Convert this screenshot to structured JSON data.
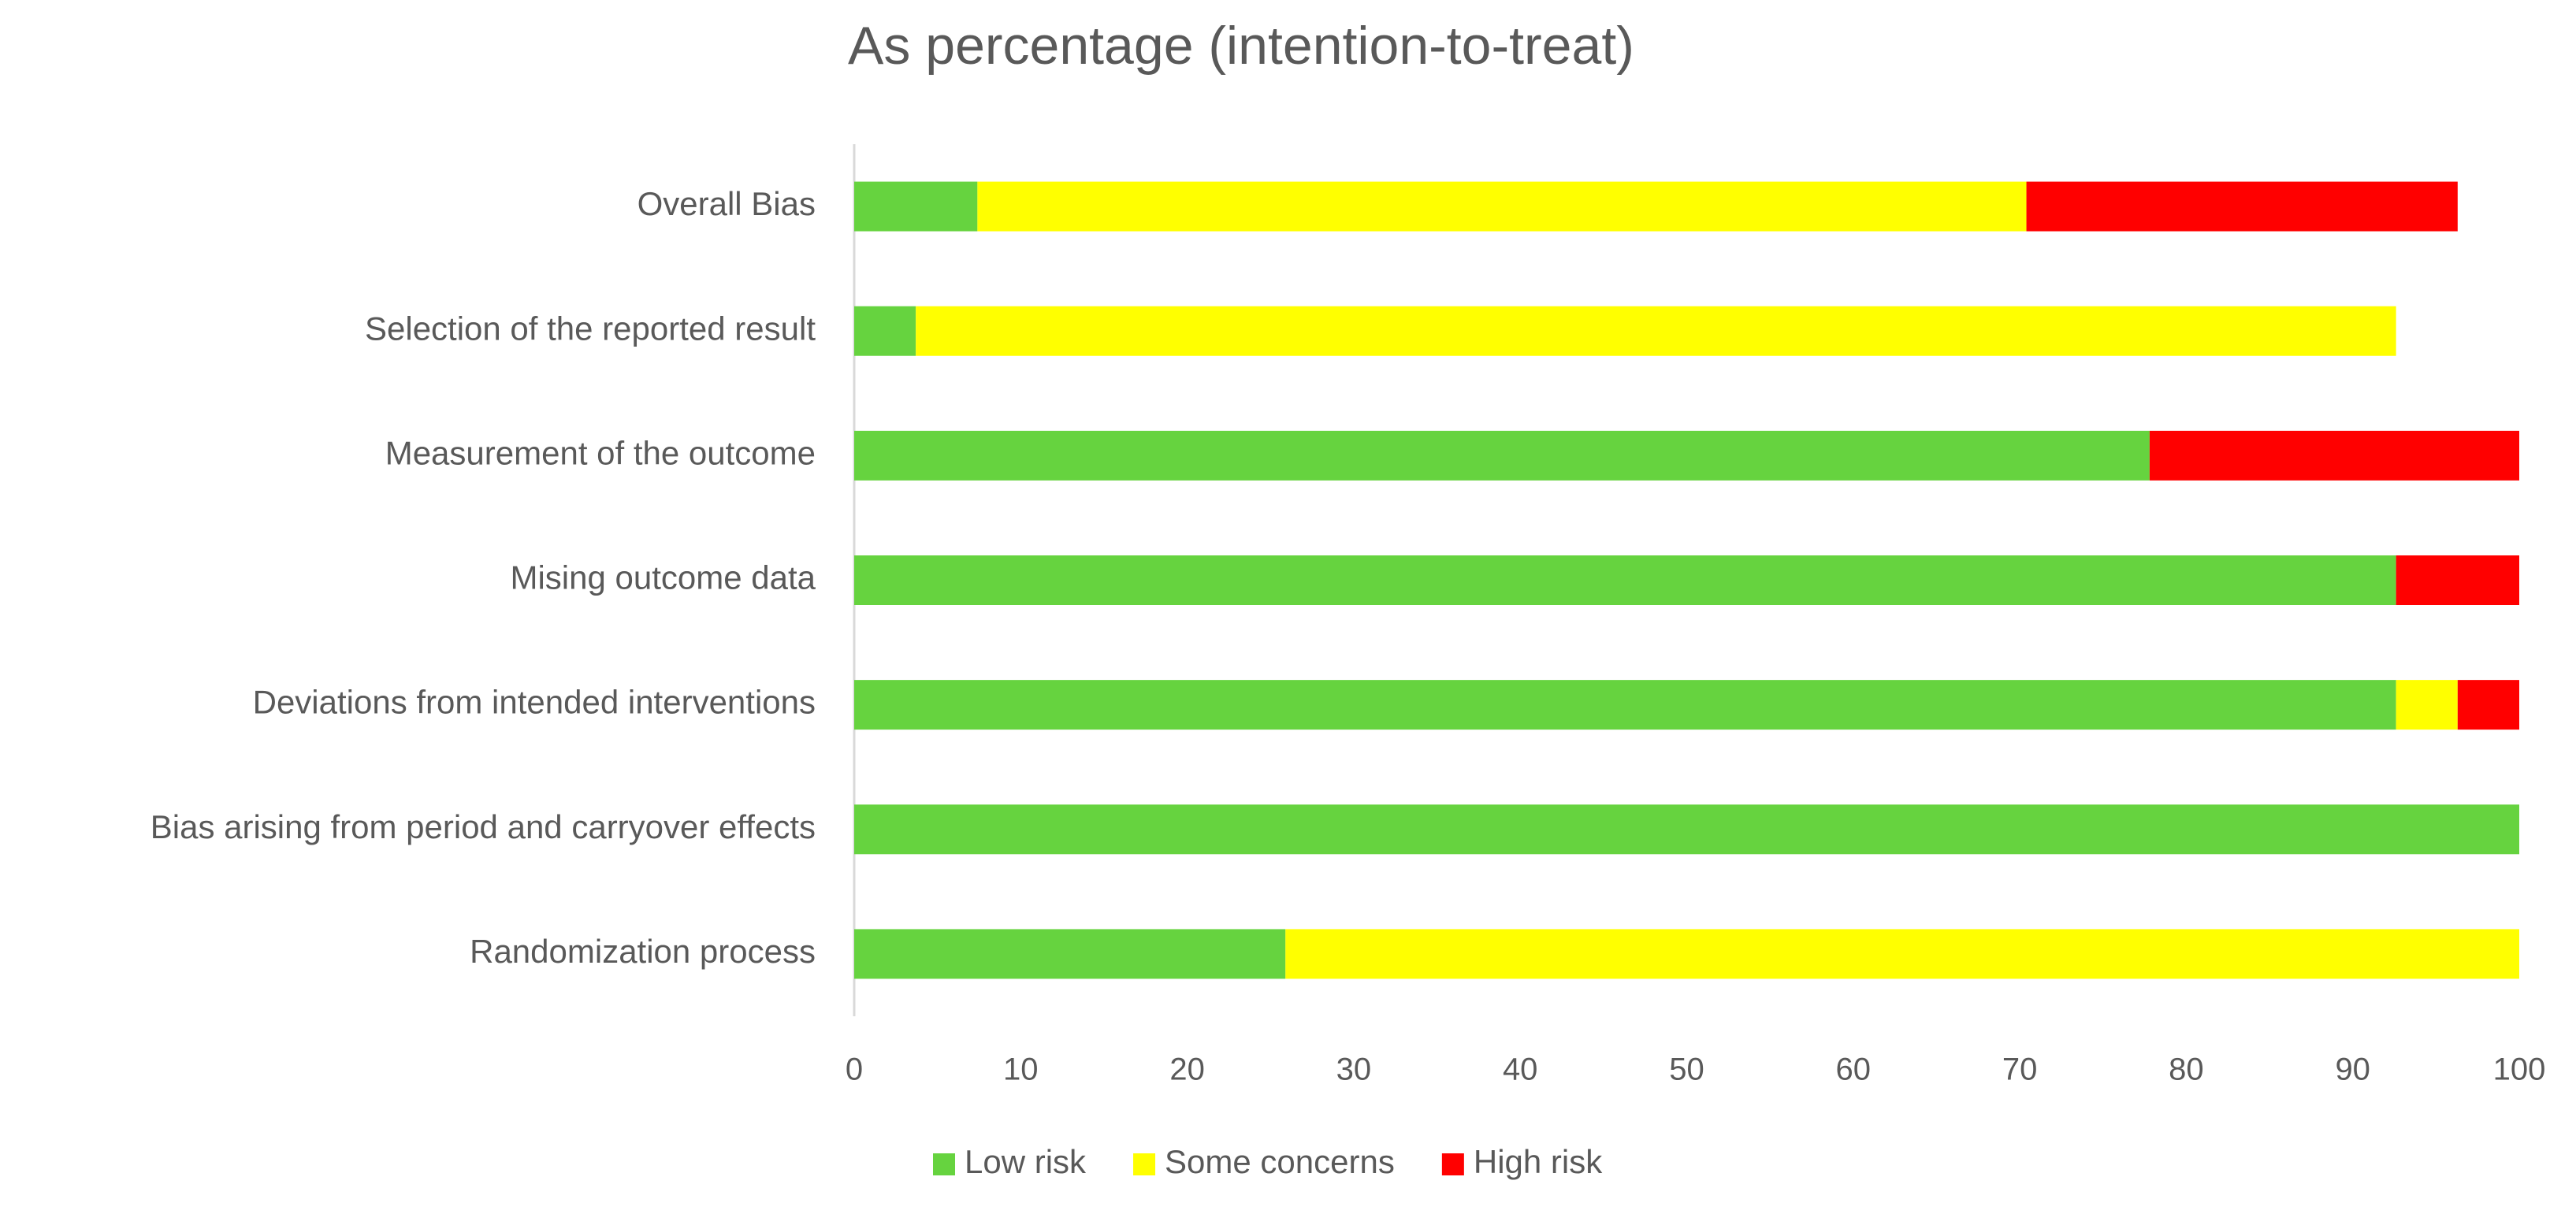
{
  "chart_data": {
    "type": "hbar_stacked",
    "title": "As percentage (intention-to-treat)",
    "categories": [
      "Overall Bias",
      "Selection of the reported result",
      "Measurement of the outcome",
      "Mising outcome data",
      "Deviations from intended interventions",
      "Bias arising from period and carryover effects",
      "Randomization process"
    ],
    "series": [
      {
        "name": "Low risk",
        "color": "#66d33f",
        "values": [
          7.4,
          3.7,
          77.8,
          92.6,
          92.6,
          100,
          25.9
        ]
      },
      {
        "name": "Some concerns",
        "color": "#ffff00",
        "values": [
          63.0,
          88.9,
          0,
          0,
          3.7,
          0,
          74.1
        ]
      },
      {
        "name": "High risk",
        "color": "#ff0000",
        "values": [
          25.9,
          0,
          22.2,
          7.4,
          3.7,
          0,
          0
        ]
      }
    ],
    "xlim": [
      0,
      100
    ],
    "xticks": [
      0,
      10,
      20,
      30,
      40,
      50,
      60,
      70,
      80,
      90,
      100
    ],
    "legend": "bottom"
  }
}
